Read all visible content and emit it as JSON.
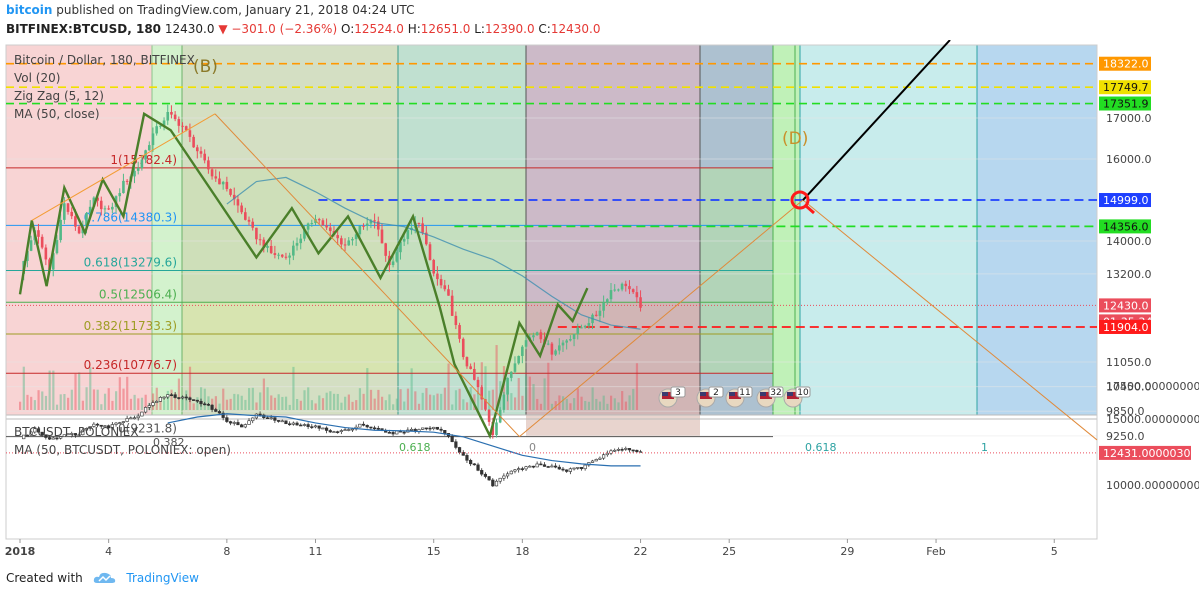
{
  "header": {
    "brand": "bitcoin",
    "published": "published on TradingView.com, January 21, 2018 04:24 UTC",
    "symbol": "BITFINEX:BTCUSD, 180",
    "last": "12430.0",
    "change": "−301.0 (−2.36%)",
    "open_label": "O:",
    "open": "12524.0",
    "high_label": "H:",
    "high": "12651.0",
    "low_label": "L:",
    "low": "12390.0",
    "close_label": "C:",
    "close": "12430.0"
  },
  "footer": {
    "created_with": "Created with",
    "brand": "TradingView"
  },
  "colors": {
    "up": "#53b987",
    "down": "#eb4d5c",
    "accent": "#2196f3"
  },
  "chart_data": [
    {
      "type": "line",
      "title": "Bitcoin / Dollar, 180, BITFINEX",
      "legend": [
        "Vol (20)",
        "Zig Zag (5, 12)",
        "MA (50, close)"
      ],
      "ylim": [
        9100,
        18600
      ],
      "y_ticks": [
        "17000.0",
        "16000.0",
        "14000.0",
        "13200.0",
        "11050.0",
        "10450.0",
        "9850.0",
        "9250.0"
      ],
      "x_ticks": [
        "2018",
        "4",
        "8",
        "11",
        "15",
        "18",
        "22",
        "25",
        "29",
        "Feb",
        "5"
      ],
      "price_labels": [
        {
          "text": "18322.0",
          "color": "#ff9800"
        },
        {
          "text": "17749.7",
          "color": "#f0e000"
        },
        {
          "text": "17351.9",
          "color": "#22dd22"
        },
        {
          "text": "14999.0",
          "color": "#1e3fff"
        },
        {
          "text": "14356.0",
          "color": "#22dd22"
        },
        {
          "text": "12430.0",
          "color": "#eb4d5c"
        },
        {
          "text": "01:35:34",
          "color": "#eb4d5c"
        },
        {
          "text": "11904.0",
          "color": "#ff1a1a"
        }
      ],
      "fib_levels": [
        {
          "label": "1(15782.4)",
          "value": 15782.4,
          "color": "#c62828"
        },
        {
          "label": "0.786(14380.3)",
          "value": 14380.3,
          "color": "#2196f3"
        },
        {
          "label": "0.618(13279.6)",
          "value": 13279.6,
          "color": "#26a69a"
        },
        {
          "label": "0.5(12506.4)",
          "value": 12506.4,
          "color": "#4caf50"
        },
        {
          "label": "0.382(11733.3)",
          "value": 11733.3,
          "color": "#9e9d24"
        },
        {
          "label": "0.236(10776.7)",
          "value": 10776.7,
          "color": "#c62828"
        },
        {
          "label": "0(9231.8)",
          "value": 9231.8,
          "color": "#555555"
        }
      ],
      "fib_extra_labels": [
        "0.382",
        "0.618",
        "0",
        "0.618",
        "1"
      ],
      "pattern_labels": [
        "(B)",
        "(D)"
      ],
      "event_badges": [
        "3",
        "2",
        "11",
        "32",
        "10"
      ],
      "zigzag": {
        "x_days": [
          0.0,
          0.4,
          0.9,
          1.5,
          2.2,
          2.8,
          3.5,
          4.2,
          5.1,
          6.6,
          8.0,
          9.2,
          10.1,
          11.1,
          12.2,
          13.3,
          14.2,
          14.7,
          15.9,
          16.9,
          17.6,
          18.2,
          18.7,
          19.2
        ],
        "values": [
          12700,
          14500,
          12900,
          15300,
          14200,
          15500,
          14600,
          17100,
          16700,
          15100,
          13600,
          14800,
          13700,
          14600,
          13100,
          14600,
          12400,
          11000,
          9250,
          12000,
          11200,
          12450,
          12050,
          12850
        ]
      },
      "series": [
        {
          "name": "BTCUSD",
          "x_days": [
            0.0,
            0.5,
            1.0,
            1.5,
            2.0,
            2.5,
            3.0,
            3.5,
            4.0,
            4.5,
            5.0,
            5.5,
            6.0,
            6.5,
            7.0,
            7.5,
            8.0,
            8.5,
            9.0,
            9.5,
            10.0,
            10.5,
            11.0,
            11.5,
            12.0,
            12.5,
            13.0,
            13.5,
            14.0,
            14.5,
            15.0,
            15.5,
            16.0,
            16.5,
            17.0,
            17.5,
            18.0,
            18.5,
            19.0,
            19.5,
            20.0,
            20.5,
            21.0
          ],
          "values": [
            13200,
            14300,
            13300,
            14900,
            14200,
            15000,
            14700,
            15400,
            15800,
            16600,
            17100,
            16800,
            16200,
            15600,
            15300,
            14700,
            14100,
            13700,
            13600,
            14100,
            14600,
            14200,
            13900,
            14300,
            14500,
            13400,
            14100,
            14500,
            13200,
            12600,
            11200,
            10400,
            9300,
            10600,
            11500,
            11800,
            11300,
            11600,
            11900,
            12200,
            12800,
            12950,
            12430
          ]
        },
        {
          "name": "MA (50, close)",
          "x_days": [
            7.0,
            8.0,
            9.0,
            10.0,
            11.0,
            12.0,
            13.0,
            14.0,
            15.0,
            16.0,
            17.0,
            18.0,
            19.0,
            20.0,
            21.0
          ],
          "values": [
            14900,
            15450,
            15550,
            15200,
            14800,
            14450,
            14350,
            14100,
            13800,
            13550,
            13150,
            12650,
            12200,
            11950,
            11850
          ]
        }
      ]
    },
    {
      "type": "line",
      "title": "BTCUSDT, POLONIEX",
      "legend": [
        "MA (50, BTCUSDT, POLONIEX: open)"
      ],
      "ylim": [
        9000,
        18000
      ],
      "y_ticks": [
        "17500.00000000",
        "15000.00000000",
        "10000.00000000"
      ],
      "last_label": "12431.00000300",
      "series": [
        {
          "name": "BTCUSDT",
          "x_days": [
            0.0,
            0.5,
            1.0,
            1.5,
            2.0,
            2.5,
            3.0,
            3.5,
            4.0,
            4.5,
            5.0,
            5.5,
            6.0,
            6.5,
            7.0,
            7.5,
            8.0,
            8.5,
            9.0,
            9.5,
            10.0,
            10.5,
            11.0,
            11.5,
            12.0,
            12.5,
            13.0,
            13.5,
            14.0,
            14.5,
            15.0,
            15.5,
            16.0,
            16.5,
            17.0,
            17.5,
            18.0,
            18.5,
            19.0,
            19.5,
            20.0,
            20.5,
            21.0
          ],
          "values": [
            13500,
            14200,
            13500,
            13800,
            13900,
            14700,
            14400,
            14900,
            15300,
            16300,
            16800,
            16600,
            16400,
            15800,
            14900,
            14400,
            15300,
            15000,
            14700,
            14500,
            14500,
            14000,
            14100,
            14600,
            14300,
            13900,
            14100,
            14200,
            14400,
            13700,
            12200,
            11200,
            10000,
            10900,
            11300,
            11500,
            11400,
            11100,
            11300,
            11900,
            12700,
            12800,
            12430
          ]
        },
        {
          "name": "MA (50, BTCUSDT, POLONIEX: open)",
          "x_days": [
            5.0,
            6.0,
            7.0,
            8.0,
            9.0,
            10.0,
            11.0,
            12.0,
            13.0,
            14.0,
            15.0,
            16.0,
            17.0,
            18.0,
            19.0,
            20.0,
            21.0
          ],
          "values": [
            14700,
            15150,
            15400,
            15250,
            15150,
            14700,
            14350,
            14150,
            14100,
            14000,
            13650,
            12950,
            12250,
            11850,
            11600,
            11450,
            11450
          ]
        }
      ]
    }
  ]
}
